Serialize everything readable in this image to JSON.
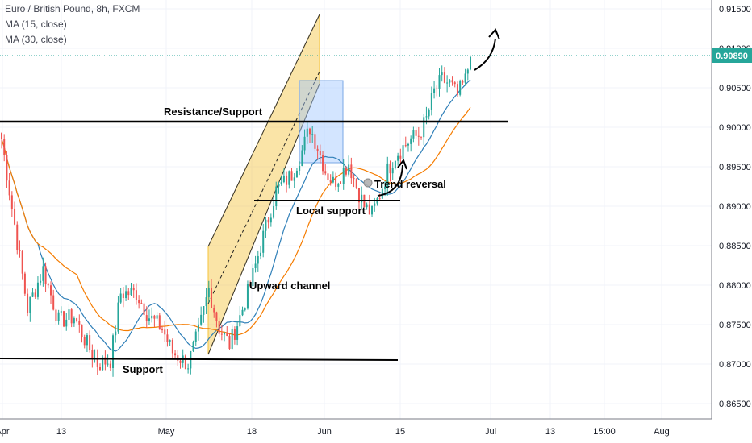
{
  "legend": {
    "symbol": "Euro / British Pound, 8h, FXCM",
    "ma15": "MA (15, close)",
    "ma30": "MA (30, close)"
  },
  "colors": {
    "up": "#26a69a",
    "down": "#ef5350",
    "ma15": "#2f7fb8",
    "ma30": "#f57c00",
    "channel": "#f5c33b",
    "box": "#9ec5fe",
    "price_line": "#26a69a",
    "grid": "#f0f3fa"
  },
  "annotations": {
    "resistance": "Resistance/Support",
    "trend_reversal": "Trend reversal",
    "local_support": "Local support",
    "upward_channel": "Upward channel",
    "support": "Support"
  },
  "chart_data": {
    "type": "candlestick",
    "title": "Euro / British Pound, 8h, FXCM",
    "x_ticks": [
      "Apr",
      "13",
      "May",
      "18",
      "Jun",
      "15",
      "Jul",
      "13",
      "15:00",
      "Aug"
    ],
    "y_ticks": [
      "0.91500",
      "0.91000",
      "0.90500",
      "0.90000",
      "0.89500",
      "0.89000",
      "0.88500",
      "0.88000",
      "0.87500",
      "0.87000",
      "0.86500"
    ],
    "ylim": [
      0.8622,
      0.9168
    ],
    "last_price": "0.90890",
    "levels": {
      "resistance_support": 0.9005,
      "local_support": 0.8903,
      "support": 0.8698
    },
    "waypoints": [
      [
        0,
        0.8985
      ],
      [
        6,
        0.8855
      ],
      [
        10,
        0.877
      ],
      [
        16,
        0.882
      ],
      [
        22,
        0.8755
      ],
      [
        28,
        0.876
      ],
      [
        33,
        0.8725
      ],
      [
        37,
        0.87
      ],
      [
        42,
        0.8705
      ],
      [
        46,
        0.879
      ],
      [
        52,
        0.879
      ],
      [
        57,
        0.876
      ],
      [
        62,
        0.8745
      ],
      [
        66,
        0.8715
      ],
      [
        72,
        0.87
      ],
      [
        76,
        0.874
      ],
      [
        80,
        0.8795
      ],
      [
        84,
        0.8745
      ],
      [
        88,
        0.8725
      ],
      [
        92,
        0.876
      ],
      [
        96,
        0.88
      ],
      [
        100,
        0.885
      ],
      [
        106,
        0.892
      ],
      [
        112,
        0.894
      ],
      [
        116,
        0.897
      ],
      [
        119,
        0.9
      ],
      [
        122,
        0.8975
      ],
      [
        125,
        0.8945
      ],
      [
        128,
        0.893
      ],
      [
        131,
        0.894
      ],
      [
        134,
        0.8955
      ],
      [
        137,
        0.8925
      ],
      [
        140,
        0.89
      ],
      [
        143,
        0.889
      ],
      [
        146,
        0.8915
      ],
      [
        149,
        0.8945
      ],
      [
        152,
        0.8965
      ],
      [
        155,
        0.8975
      ],
      [
        158,
        0.8985
      ],
      [
        161,
        0.899
      ],
      [
        164,
        0.901
      ],
      [
        167,
        0.9045
      ],
      [
        170,
        0.906
      ],
      [
        173,
        0.9055
      ],
      [
        176,
        0.904
      ],
      [
        179,
        0.906
      ],
      [
        181,
        0.9089
      ]
    ]
  }
}
